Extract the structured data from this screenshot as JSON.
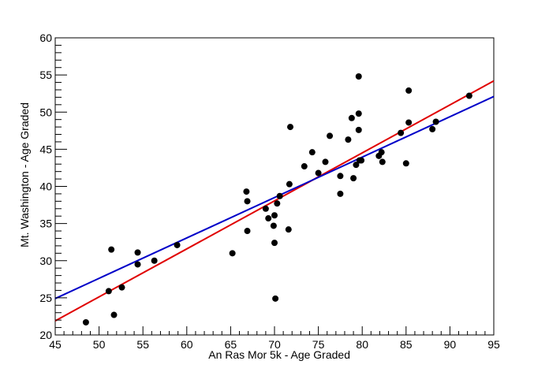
{
  "chart_data": {
    "type": "scatter",
    "title": "",
    "xlabel": "An Ras Mor 5k - Age Graded",
    "ylabel": "Mt. Washington - Age Graded",
    "xlim": [
      45,
      95
    ],
    "ylim": [
      20,
      60
    ],
    "x_ticks": [
      "45",
      "50",
      "55",
      "60",
      "65",
      "70",
      "75",
      "80",
      "85",
      "90",
      "95"
    ],
    "y_ticks": [
      "20",
      "25",
      "30",
      "35",
      "40",
      "45",
      "50",
      "55",
      "60"
    ],
    "grid": false,
    "legend": "none",
    "points": [
      [
        48.5,
        21.7
      ],
      [
        51.1,
        25.9
      ],
      [
        51.4,
        31.5
      ],
      [
        51.7,
        22.7
      ],
      [
        52.6,
        26.4
      ],
      [
        54.4,
        29.5
      ],
      [
        54.4,
        31.1
      ],
      [
        56.3,
        30.0
      ],
      [
        58.9,
        32.1
      ],
      [
        65.2,
        31.0
      ],
      [
        66.8,
        39.3
      ],
      [
        66.9,
        38.0
      ],
      [
        66.9,
        34.0
      ],
      [
        69.0,
        37.0
      ],
      [
        69.3,
        35.7
      ],
      [
        69.9,
        34.7
      ],
      [
        70.0,
        36.1
      ],
      [
        70.0,
        32.4
      ],
      [
        70.1,
        24.9
      ],
      [
        70.3,
        37.7
      ],
      [
        70.6,
        38.7
      ],
      [
        71.6,
        34.2
      ],
      [
        71.7,
        40.3
      ],
      [
        71.8,
        48.0
      ],
      [
        73.4,
        42.7
      ],
      [
        74.3,
        44.6
      ],
      [
        75.0,
        41.8
      ],
      [
        75.8,
        43.3
      ],
      [
        76.3,
        46.8
      ],
      [
        77.5,
        41.4
      ],
      [
        77.5,
        39.0
      ],
      [
        78.4,
        46.3
      ],
      [
        78.8,
        49.2
      ],
      [
        79.0,
        41.1
      ],
      [
        79.3,
        42.9
      ],
      [
        79.6,
        49.8
      ],
      [
        79.6,
        47.6
      ],
      [
        79.6,
        54.8
      ],
      [
        79.7,
        43.5
      ],
      [
        79.9,
        43.5
      ],
      [
        81.9,
        44.1
      ],
      [
        82.2,
        44.6
      ],
      [
        82.3,
        43.3
      ],
      [
        84.4,
        47.2
      ],
      [
        85.0,
        43.1
      ],
      [
        85.3,
        48.6
      ],
      [
        85.3,
        52.9
      ],
      [
        88.0,
        47.7
      ],
      [
        88.4,
        48.7
      ],
      [
        92.2,
        52.2
      ]
    ],
    "point_color": "#000000",
    "lines": [
      {
        "color": "#e00000",
        "x": [
          45,
          95
        ],
        "y": [
          21.9,
          54.2
        ]
      },
      {
        "color": "#0000c8",
        "x": [
          45,
          95
        ],
        "y": [
          24.9,
          52.1
        ]
      }
    ]
  }
}
